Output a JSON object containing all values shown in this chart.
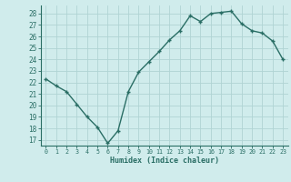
{
  "x": [
    0,
    1,
    2,
    3,
    4,
    5,
    6,
    7,
    8,
    9,
    10,
    11,
    12,
    13,
    14,
    15,
    16,
    17,
    18,
    19,
    20,
    21,
    22,
    23
  ],
  "y": [
    22.3,
    21.7,
    21.2,
    20.1,
    19.0,
    18.1,
    16.7,
    17.8,
    21.2,
    22.9,
    23.8,
    24.7,
    25.7,
    26.5,
    27.8,
    27.3,
    28.0,
    28.1,
    28.2,
    27.1,
    26.5,
    26.3,
    25.6,
    24.0
  ],
  "xlabel": "Humidex (Indice chaleur)",
  "ylim": [
    16.5,
    28.7
  ],
  "yticks": [
    17,
    18,
    19,
    20,
    21,
    22,
    23,
    24,
    25,
    26,
    27,
    28
  ],
  "xticks": [
    0,
    1,
    2,
    3,
    4,
    5,
    6,
    7,
    8,
    9,
    10,
    11,
    12,
    13,
    14,
    15,
    16,
    17,
    18,
    19,
    20,
    21,
    22,
    23
  ],
  "line_color": "#2a6e65",
  "marker_color": "#2a6e65",
  "bg_color": "#d0ecec",
  "grid_color": "#b0d4d4",
  "xlabel_color": "#2a6e65",
  "tick_color": "#2a6e65"
}
